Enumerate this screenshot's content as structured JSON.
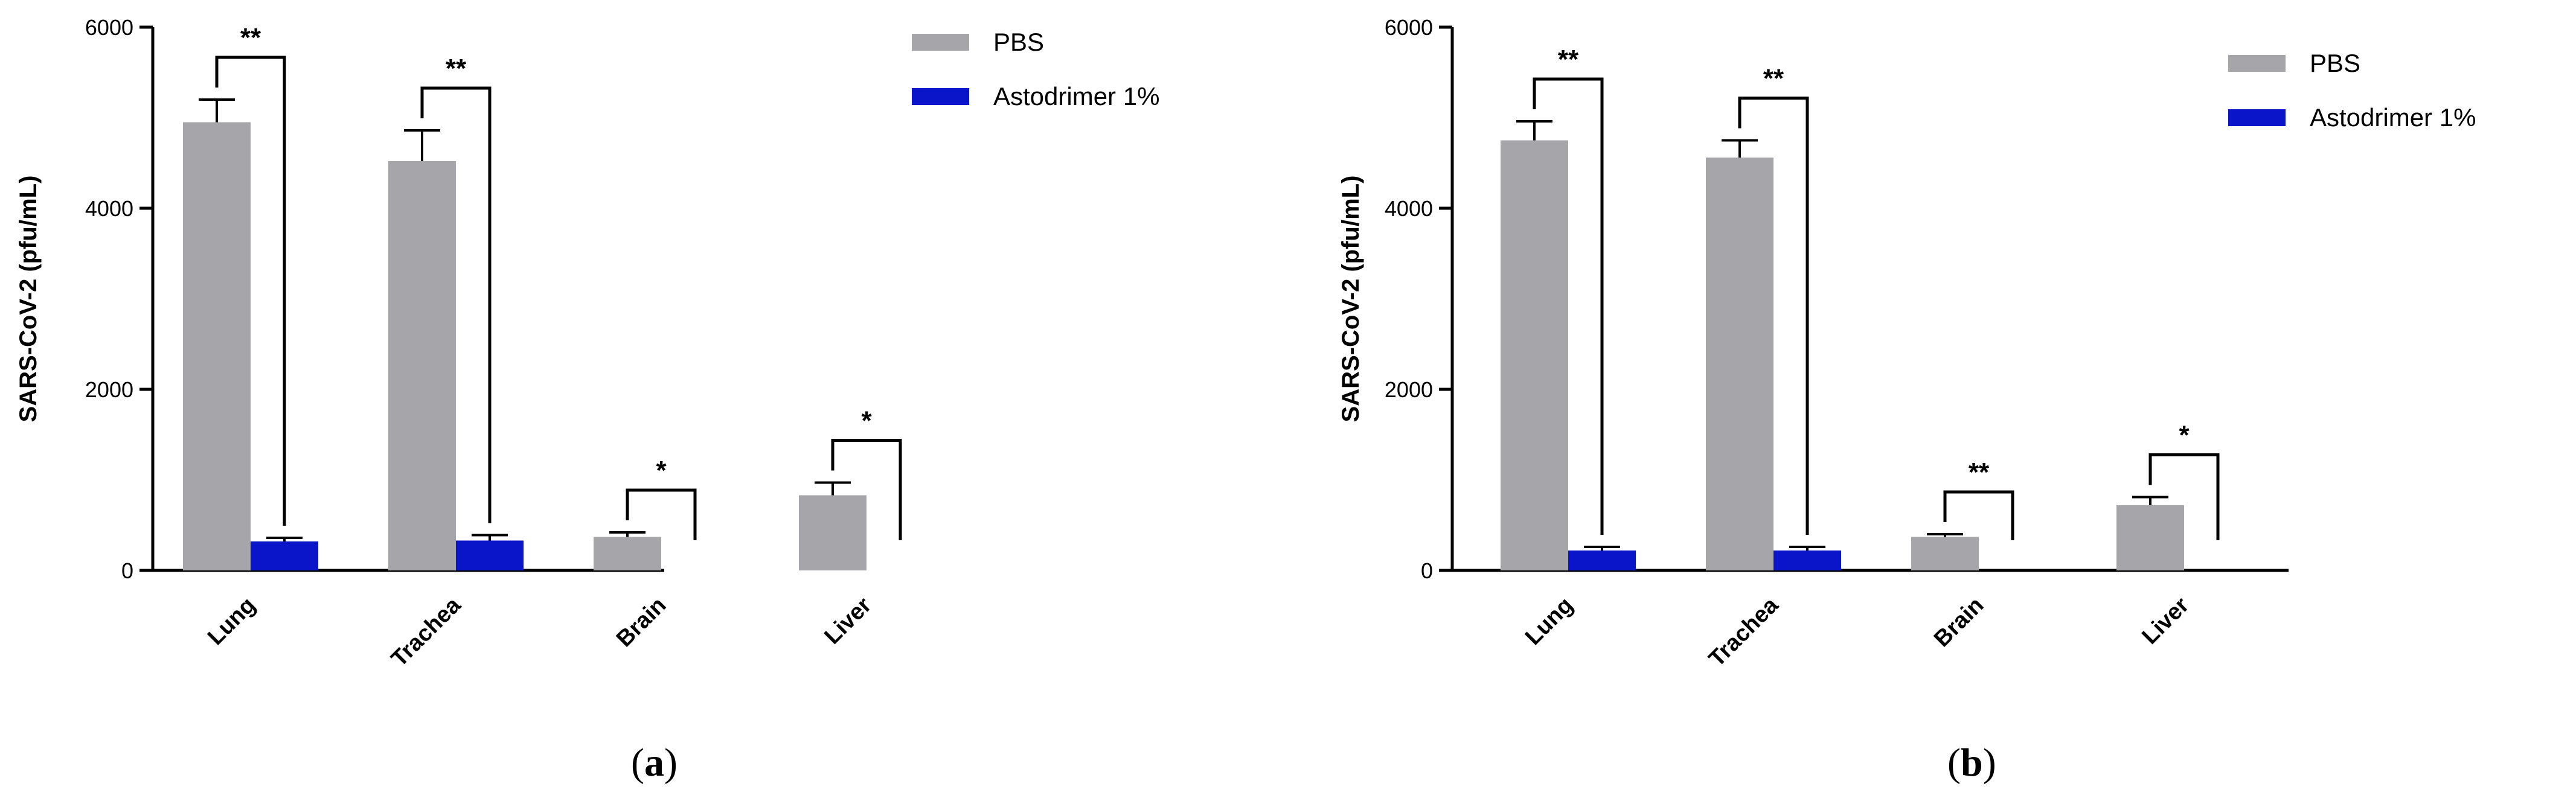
{
  "colors": {
    "pbs": "#a5a5aa",
    "astodrimer": "#0a14c8",
    "axis": "#000000"
  },
  "chart_data": [
    {
      "type": "bar",
      "panel_label": "a",
      "ylabel": "SARS-CoV-2 (pfu/mL)",
      "ylim": [
        0,
        6000
      ],
      "yticks": [
        "0",
        "2000",
        "4000",
        "6000"
      ],
      "categories": [
        "Lung",
        "Trachea",
        "Brain",
        "Liver"
      ],
      "series": [
        {
          "name": "PBS",
          "values": [
            4950,
            4520,
            370,
            830
          ],
          "errors": [
            250,
            340,
            50,
            140
          ]
        },
        {
          "name": "Astodrimer 1%",
          "values": [
            320,
            330,
            0,
            0
          ],
          "errors": [
            40,
            60,
            0,
            0
          ]
        }
      ],
      "significance": [
        "**",
        "**",
        "*",
        "*"
      ],
      "legend": "top-right"
    },
    {
      "type": "bar",
      "panel_label": "b",
      "ylabel": "SARS-CoV-2 (pfu/mL)",
      "ylim": [
        0,
        6000
      ],
      "yticks": [
        "0",
        "2000",
        "4000",
        "6000"
      ],
      "categories": [
        "Lung",
        "Trachea",
        "Brain",
        "Liver"
      ],
      "series": [
        {
          "name": "PBS",
          "values": [
            4750,
            4560,
            370,
            720
          ],
          "errors": [
            210,
            190,
            30,
            90
          ]
        },
        {
          "name": "Astodrimer 1%",
          "values": [
            220,
            220,
            0,
            0
          ],
          "errors": [
            40,
            40,
            0,
            0
          ]
        }
      ],
      "significance": [
        "**",
        "**",
        "**",
        "*"
      ],
      "legend": "top-right"
    }
  ]
}
